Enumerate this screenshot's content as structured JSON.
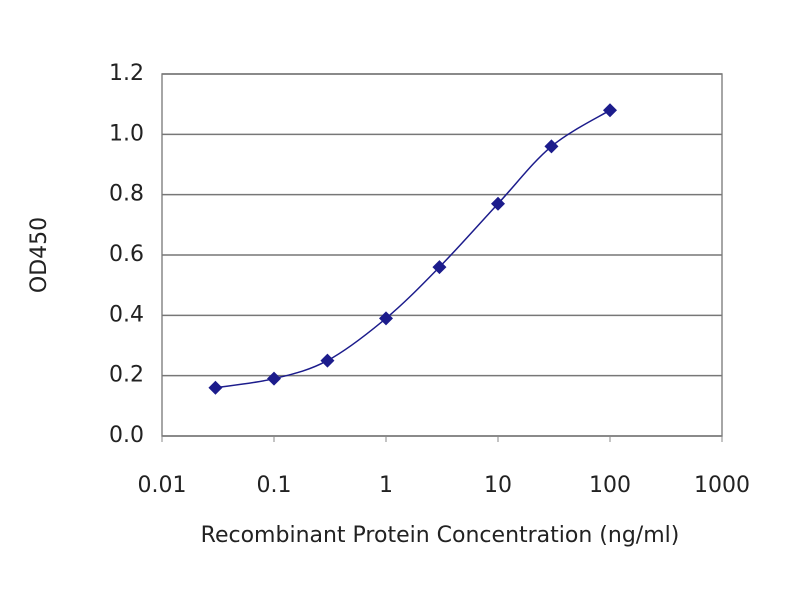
{
  "chart_data": {
    "type": "line",
    "xlabel": "Recombinant Protein Concentration (ng/ml)",
    "ylabel": "OD450",
    "x": [
      0.03,
      0.1,
      0.3,
      1,
      3,
      10,
      30,
      100
    ],
    "series": [
      {
        "color": "#1c1c8c",
        "values": [
          0.16,
          0.19,
          0.25,
          0.39,
          0.56,
          0.77,
          0.96,
          1.08
        ]
      }
    ],
    "xscale": "log",
    "xlim": [
      0.01,
      1000
    ],
    "xticks": [
      0.01,
      0.1,
      1,
      10,
      100,
      1000
    ],
    "ylim": [
      0,
      1.2
    ],
    "yticks": [
      {
        "value": 0,
        "label": "0.0"
      },
      {
        "value": 0.2,
        "label": "0.2"
      },
      {
        "value": 0.4,
        "label": "0.4"
      },
      {
        "value": 0.6,
        "label": "0.6"
      },
      {
        "value": 0.8,
        "label": "0.8"
      },
      {
        "value": 1.0,
        "label": "1.0"
      },
      {
        "value": 1.2,
        "label": "1.2"
      }
    ],
    "grid": true
  }
}
